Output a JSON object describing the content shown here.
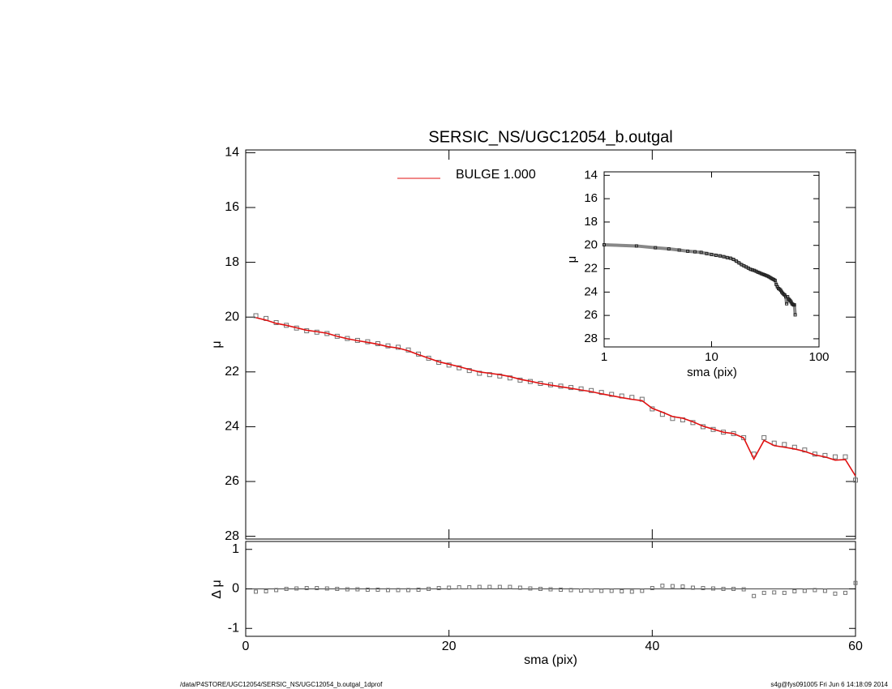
{
  "chart_data": [
    {
      "type": "line",
      "title": "SERSIC_NS/UGC12054_b.outgal",
      "y_label": "μ",
      "x": [
        1,
        2,
        3,
        4,
        5,
        6,
        7,
        8,
        9,
        10,
        11,
        12,
        13,
        14,
        15,
        16,
        17,
        18,
        19,
        20,
        21,
        22,
        23,
        24,
        25,
        26,
        27,
        28,
        29,
        30,
        31,
        32,
        33,
        34,
        35,
        36,
        37,
        38,
        39,
        40,
        41,
        42,
        43,
        44,
        45,
        46,
        47,
        48,
        49,
        50,
        51,
        52,
        53,
        54,
        55,
        56,
        57,
        58,
        59,
        60
      ],
      "series": [
        {
          "color": "#707070",
          "marker": "square",
          "values": [
            19.95,
            20.05,
            20.2,
            20.3,
            20.4,
            20.5,
            20.55,
            20.6,
            20.7,
            20.78,
            20.85,
            20.9,
            20.97,
            21.05,
            21.1,
            21.2,
            21.35,
            21.5,
            21.65,
            21.75,
            21.85,
            21.95,
            22.05,
            22.1,
            22.15,
            22.22,
            22.3,
            22.35,
            22.42,
            22.47,
            22.52,
            22.57,
            22.62,
            22.68,
            22.75,
            22.82,
            22.88,
            22.93,
            23.0,
            23.35,
            23.55,
            23.7,
            23.75,
            23.85,
            24.0,
            24.1,
            24.2,
            24.25,
            24.4,
            25.0,
            24.4,
            24.6,
            24.65,
            24.75,
            24.85,
            25.0,
            25.05,
            25.1,
            25.1,
            25.95
          ]
        },
        {
          "name": "BULGE  1.000",
          "color": "#e01010",
          "values": [
            20.02,
            20.11,
            20.23,
            20.3,
            20.39,
            20.48,
            20.53,
            20.59,
            20.7,
            20.79,
            20.86,
            20.92,
            20.99,
            21.08,
            21.13,
            21.23,
            21.37,
            21.5,
            21.63,
            21.72,
            21.81,
            21.91,
            22.0,
            22.05,
            22.1,
            22.17,
            22.27,
            22.34,
            22.42,
            22.48,
            22.54,
            22.6,
            22.66,
            22.72,
            22.8,
            22.87,
            22.94,
            23.0,
            23.05,
            23.33,
            23.47,
            23.63,
            23.69,
            23.82,
            23.98,
            24.09,
            24.2,
            24.25,
            24.41,
            25.18,
            24.5,
            24.69,
            24.75,
            24.81,
            24.9,
            25.03,
            25.1,
            25.22,
            25.2,
            25.8
          ]
        }
      ],
      "xlim": [
        0,
        60
      ],
      "xticks": [
        0,
        20,
        40,
        60
      ],
      "ylim": [
        28.1,
        13.9
      ],
      "yticks": [
        14,
        16,
        18,
        20,
        22,
        24,
        26,
        28
      ]
    },
    {
      "type": "scatter",
      "y_label": "Δ μ",
      "x_label": "sma (pix)",
      "values": [
        -0.07,
        -0.06,
        -0.03,
        0,
        0.01,
        0.02,
        0.02,
        0.01,
        0,
        -0.01,
        -0.01,
        -0.02,
        -0.02,
        -0.03,
        -0.03,
        -0.03,
        -0.02,
        0,
        0.02,
        0.03,
        0.04,
        0.04,
        0.05,
        0.05,
        0.05,
        0.05,
        0.03,
        0.01,
        0,
        -0.01,
        -0.02,
        -0.03,
        -0.04,
        -0.04,
        -0.05,
        -0.05,
        -0.06,
        -0.07,
        -0.05,
        0.02,
        0.08,
        0.07,
        0.06,
        0.03,
        0.02,
        0.01,
        0,
        0,
        -0.01,
        -0.18,
        -0.1,
        -0.09,
        -0.1,
        -0.06,
        -0.05,
        -0.03,
        -0.05,
        -0.12,
        -0.1,
        0.15
      ],
      "color": "#707070",
      "xlim": [
        0,
        60
      ],
      "xticks": [
        0,
        20,
        40,
        60
      ],
      "ylim": [
        -1.2,
        1.2
      ],
      "yticks": [
        -1,
        0,
        1
      ]
    },
    {
      "type": "line",
      "x_label": "sma (pix)",
      "y_label": "μ",
      "xlog": true,
      "xlim": [
        1,
        100
      ],
      "xticks": [
        1,
        10,
        100
      ],
      "ylim": [
        28.7,
        13.7
      ],
      "yticks": [
        14,
        16,
        18,
        20,
        22,
        24,
        26,
        28
      ]
    }
  ],
  "footer": {
    "left": "/data/P4STORE/UGC12054/SERSIC_NS/UGC12054_b.outgal_1dprof",
    "right": "s4g@fys091005  Fri Jun  6 14:18:09 2014"
  }
}
